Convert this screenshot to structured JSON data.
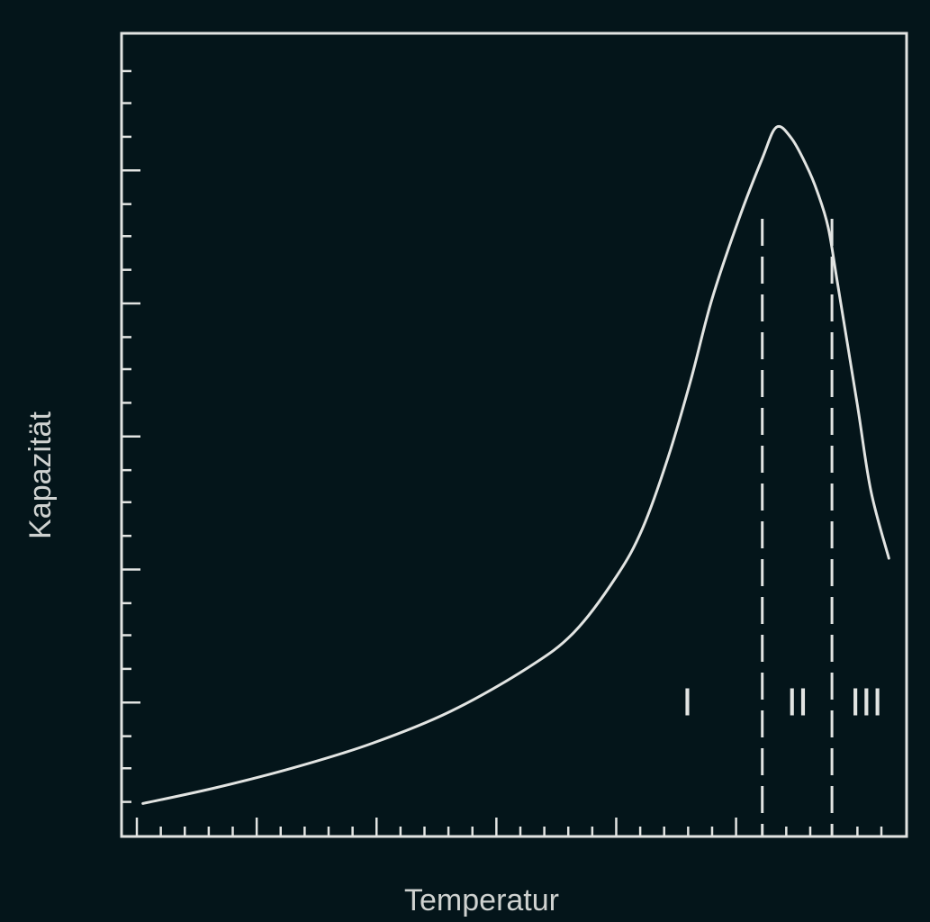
{
  "colors": {
    "background": "#04151a",
    "foreground": "#e2e4e2",
    "label": "#cfd2d0"
  },
  "chart_data": {
    "type": "line",
    "title": "",
    "xlabel": "Temperatur",
    "ylabel": "Kapazität",
    "xlim": [
      0,
      100
    ],
    "ylim": [
      0,
      100
    ],
    "grid": false,
    "legend": "none",
    "x_ticks": {
      "major": [
        0,
        16,
        32,
        48,
        64,
        80
      ],
      "minor": [
        3.2,
        6.4,
        9.6,
        12.8,
        19.2,
        22.4,
        25.6,
        28.8,
        35.2,
        38.4,
        41.6,
        44.8,
        51.2,
        54.4,
        57.6,
        60.8,
        67.2,
        70.4,
        73.6,
        76.8,
        86.7,
        89.9,
        96.2,
        99.4
      ]
    },
    "y_ticks": {
      "major": [
        16.6,
        33.2,
        49.8,
        66.4,
        83.0
      ],
      "minor": [
        4.2,
        8.4,
        12.4,
        20.8,
        25.0,
        29.0,
        37.4,
        41.6,
        45.6,
        54.0,
        58.2,
        62.2,
        70.6,
        74.8,
        78.8,
        87.2,
        91.4,
        95.4
      ]
    },
    "series": [
      {
        "x": [
          0.8,
          10.2,
          20.7,
          31.4,
          41.9,
          52.3,
          58.4,
          64.0,
          67.5,
          71.0,
          74.0,
          76.8,
          80.4,
          83.5,
          85.4,
          87.4,
          89.4,
          90.9,
          92.3,
          93.5,
          96.2,
          98.0,
          100.4
        ],
        "y": [
          4.0,
          5.9,
          8.4,
          11.5,
          15.5,
          21.0,
          25.4,
          32.3,
          38.3,
          47.4,
          57.0,
          67.0,
          77.0,
          84.5,
          88.4,
          87.0,
          83.6,
          80.2,
          75.9,
          69.2,
          53.7,
          43.0,
          34.6
        ]
      }
    ],
    "boundaries": [
      83.5,
      92.8
    ],
    "regions": [
      {
        "label": "I",
        "x": 73.5,
        "y": 15.0
      },
      {
        "label": "II",
        "x": 88.2,
        "y": 15.0
      },
      {
        "label": "III",
        "x": 97.4,
        "y": 15.0
      }
    ]
  }
}
